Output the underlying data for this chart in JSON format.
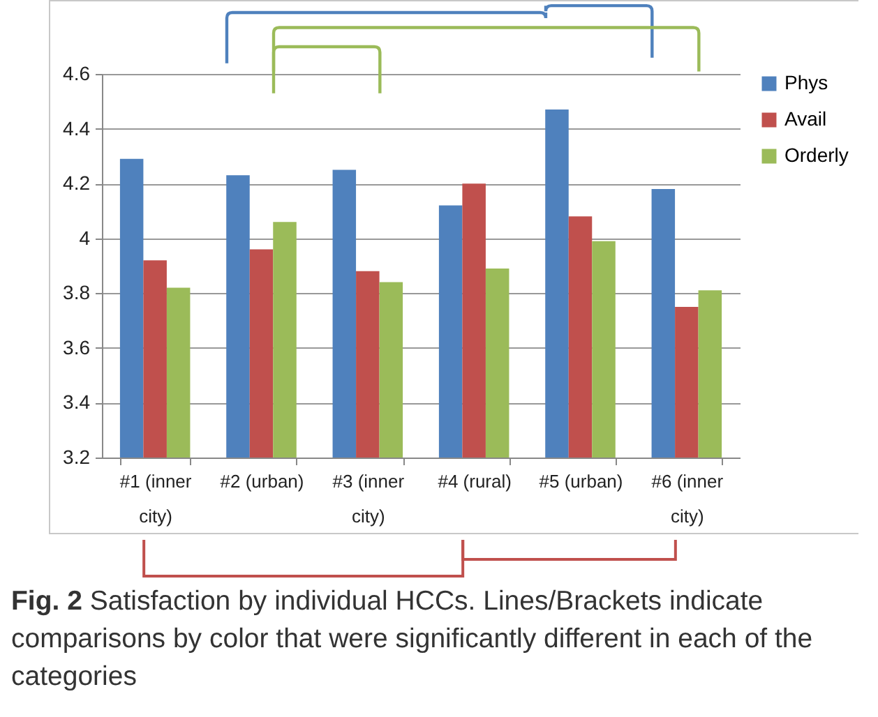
{
  "chart_data": {
    "type": "bar",
    "categories": [
      "#1 (inner city)",
      "#2 (urban)",
      "#3 (inner city)",
      "#4 (rural)",
      "#5 (urban)",
      "#6 (inner city)"
    ],
    "series": [
      {
        "name": "Phys",
        "color": "#4f81bd",
        "values": [
          4.29,
          4.23,
          4.25,
          4.12,
          4.47,
          4.18
        ]
      },
      {
        "name": "Avail",
        "color": "#c0504d",
        "values": [
          3.92,
          3.96,
          3.88,
          4.2,
          4.08,
          3.75
        ]
      },
      {
        "name": "Orderly",
        "color": "#9bbb59",
        "values": [
          3.82,
          4.06,
          3.84,
          3.89,
          3.99,
          3.81
        ]
      }
    ],
    "ylim": [
      3.2,
      4.6
    ],
    "yticks": [
      3.2,
      3.4,
      3.6,
      3.8,
      4,
      4.2,
      4.4,
      4.6
    ],
    "grid": "y",
    "legend": "right",
    "annotations": [
      "Fig. 2",
      "Satisfaction by individual HCCs. Lines/Brackets indicate comparisons by color that were significantly different in each of the categories"
    ]
  }
}
